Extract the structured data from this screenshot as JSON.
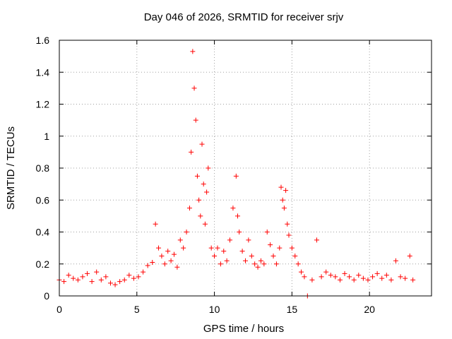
{
  "chart_data": {
    "type": "scatter",
    "title": "Day 046 of 2026, SRMTID for receiver srjv",
    "xlabel": "GPS time / hours",
    "ylabel": "SRMTID / TECUs",
    "xlim": [
      0,
      24
    ],
    "ylim": [
      0,
      1.6
    ],
    "x_ticks": [
      0,
      5,
      10,
      15,
      20
    ],
    "y_ticks": [
      0,
      0.2,
      0.4,
      0.6,
      0.8,
      1,
      1.2,
      1.4,
      1.6
    ],
    "x_tick_labels": [
      "0",
      "5",
      "10",
      "15",
      "20"
    ],
    "y_tick_labels": [
      "0",
      "0.2",
      "0.4",
      "0.6",
      "0.8",
      "1",
      "1.2",
      "1.4",
      "1.6"
    ],
    "grid": true,
    "marker": "+",
    "marker_color": "#ff0000",
    "series": [
      {
        "name": "srjv",
        "x": [
          0.0,
          0.3,
          0.6,
          0.9,
          1.2,
          1.5,
          1.8,
          2.1,
          2.4,
          2.7,
          3.0,
          3.3,
          3.6,
          3.9,
          4.2,
          4.5,
          4.8,
          5.1,
          5.4,
          5.7,
          6.0,
          6.2,
          6.4,
          6.6,
          6.8,
          7.0,
          7.2,
          7.4,
          7.6,
          7.8,
          8.0,
          8.2,
          8.4,
          8.5,
          8.6,
          8.7,
          8.8,
          8.9,
          9.0,
          9.1,
          9.2,
          9.3,
          9.4,
          9.5,
          9.6,
          9.8,
          10.0,
          10.2,
          10.4,
          10.6,
          10.8,
          11.0,
          11.2,
          11.4,
          11.5,
          11.6,
          11.8,
          12.0,
          12.2,
          12.4,
          12.6,
          12.8,
          13.0,
          13.2,
          13.4,
          13.6,
          13.8,
          14.0,
          14.2,
          14.3,
          14.4,
          14.5,
          14.6,
          14.7,
          14.8,
          15.0,
          15.2,
          15.4,
          15.6,
          15.8,
          16.0,
          16.3,
          16.6,
          16.9,
          17.2,
          17.5,
          17.8,
          18.1,
          18.4,
          18.7,
          19.0,
          19.3,
          19.6,
          19.9,
          20.2,
          20.5,
          20.8,
          21.1,
          21.4,
          21.7,
          22.0,
          22.3,
          22.6,
          22.8
        ],
        "y": [
          0.1,
          0.09,
          0.13,
          0.11,
          0.1,
          0.12,
          0.14,
          0.09,
          0.15,
          0.1,
          0.12,
          0.08,
          0.07,
          0.09,
          0.1,
          0.13,
          0.11,
          0.12,
          0.15,
          0.19,
          0.21,
          0.45,
          0.3,
          0.25,
          0.2,
          0.28,
          0.22,
          0.26,
          0.18,
          0.35,
          0.3,
          0.4,
          0.55,
          0.9,
          1.53,
          1.3,
          1.1,
          0.75,
          0.6,
          0.5,
          0.95,
          0.7,
          0.45,
          0.65,
          0.8,
          0.3,
          0.25,
          0.3,
          0.2,
          0.28,
          0.22,
          0.35,
          0.55,
          0.75,
          0.5,
          0.4,
          0.28,
          0.22,
          0.35,
          0.25,
          0.2,
          0.18,
          0.22,
          0.2,
          0.4,
          0.32,
          0.25,
          0.2,
          0.3,
          0.68,
          0.6,
          0.55,
          0.66,
          0.45,
          0.38,
          0.3,
          0.25,
          0.2,
          0.15,
          0.12,
          0.0,
          0.1,
          0.35,
          0.12,
          0.15,
          0.13,
          0.12,
          0.1,
          0.14,
          0.12,
          0.1,
          0.13,
          0.11,
          0.1,
          0.12,
          0.14,
          0.11,
          0.13,
          0.1,
          0.22,
          0.12,
          0.11,
          0.25,
          0.1
        ]
      }
    ]
  }
}
